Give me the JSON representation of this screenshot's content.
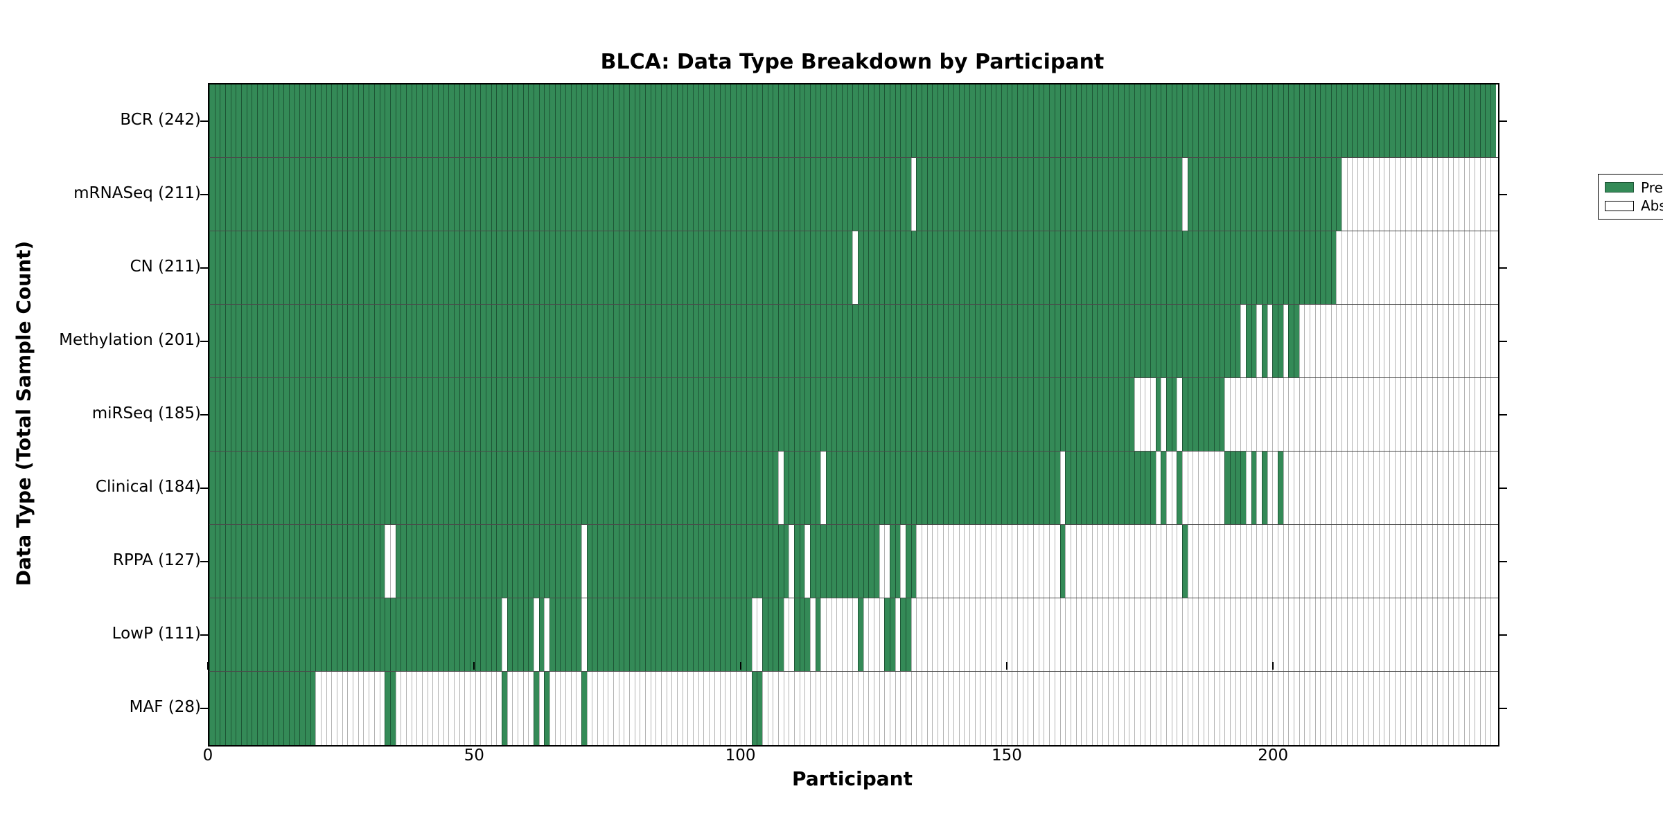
{
  "title": "BLCA: Data Type Breakdown by Participant",
  "legend": {
    "present_label": "Present",
    "absent_label": "Absent"
  },
  "colors": {
    "present_fill": "#348a57",
    "present_edge": "#1d5535",
    "absent_fill": "#ffffff",
    "absent_edge": "#b3b3b3",
    "row_separator": "#4a4a4a",
    "spine": "#000000"
  },
  "chart_data": {
    "type": "heatmap",
    "title": "BLCA: Data Type Breakdown by Participant",
    "xlabel": "Participant",
    "ylabel": "Data Type (Total Sample Count)",
    "x_range": [
      0,
      242
    ],
    "n_participants": 242,
    "x_ticks": [
      0,
      50,
      100,
      150,
      200
    ],
    "x_tick_labels": [
      "0",
      "50",
      "100",
      "150",
      "200"
    ],
    "grid": false,
    "legend_position": "upper right",
    "legend_entries": [
      "Present",
      "Absent"
    ],
    "states": {
      "P": "present",
      "A": "absent"
    },
    "rows": [
      {
        "name": "BCR",
        "count": 242,
        "label": "BCR (242)",
        "segments": [
          [
            0,
            242,
            "P"
          ]
        ]
      },
      {
        "name": "mRNASeq",
        "count": 211,
        "label": "mRNASeq (211)",
        "segments": [
          [
            0,
            132,
            "P"
          ],
          [
            132,
            133,
            "A"
          ],
          [
            133,
            183,
            "P"
          ],
          [
            183,
            184,
            "A"
          ],
          [
            184,
            213,
            "P"
          ],
          [
            213,
            242,
            "A"
          ]
        ]
      },
      {
        "name": "CN",
        "count": 211,
        "label": "CN (211)",
        "segments": [
          [
            0,
            121,
            "P"
          ],
          [
            121,
            122,
            "A"
          ],
          [
            122,
            212,
            "P"
          ],
          [
            212,
            242,
            "A"
          ]
        ]
      },
      {
        "name": "Methylation",
        "count": 201,
        "label": "Methylation (201)",
        "segments": [
          [
            0,
            194,
            "P"
          ],
          [
            194,
            195,
            "A"
          ],
          [
            195,
            197,
            "P"
          ],
          [
            197,
            198,
            "A"
          ],
          [
            198,
            199,
            "P"
          ],
          [
            199,
            200,
            "A"
          ],
          [
            200,
            202,
            "P"
          ],
          [
            202,
            203,
            "A"
          ],
          [
            203,
            205,
            "P"
          ],
          [
            205,
            242,
            "A"
          ]
        ]
      },
      {
        "name": "miRSeq",
        "count": 185,
        "label": "miRSeq (185)",
        "segments": [
          [
            0,
            174,
            "P"
          ],
          [
            174,
            178,
            "A"
          ],
          [
            178,
            179,
            "P"
          ],
          [
            179,
            180,
            "A"
          ],
          [
            180,
            182,
            "P"
          ],
          [
            182,
            183,
            "A"
          ],
          [
            183,
            191,
            "P"
          ],
          [
            191,
            242,
            "A"
          ]
        ]
      },
      {
        "name": "Clinical",
        "count": 184,
        "label": "Clinical (184)",
        "segments": [
          [
            0,
            107,
            "P"
          ],
          [
            107,
            108,
            "A"
          ],
          [
            108,
            115,
            "P"
          ],
          [
            115,
            116,
            "A"
          ],
          [
            116,
            160,
            "P"
          ],
          [
            160,
            161,
            "A"
          ],
          [
            161,
            178,
            "P"
          ],
          [
            178,
            179,
            "A"
          ],
          [
            179,
            180,
            "P"
          ],
          [
            180,
            182,
            "A"
          ],
          [
            182,
            183,
            "P"
          ],
          [
            183,
            191,
            "A"
          ],
          [
            191,
            195,
            "P"
          ],
          [
            195,
            196,
            "A"
          ],
          [
            196,
            197,
            "P"
          ],
          [
            197,
            198,
            "A"
          ],
          [
            198,
            199,
            "P"
          ],
          [
            199,
            201,
            "A"
          ],
          [
            201,
            202,
            "P"
          ],
          [
            202,
            242,
            "A"
          ]
        ]
      },
      {
        "name": "RPPA",
        "count": 127,
        "label": "RPPA (127)",
        "segments": [
          [
            0,
            33,
            "P"
          ],
          [
            33,
            35,
            "A"
          ],
          [
            35,
            70,
            "P"
          ],
          [
            70,
            71,
            "A"
          ],
          [
            71,
            109,
            "P"
          ],
          [
            109,
            110,
            "A"
          ],
          [
            110,
            112,
            "P"
          ],
          [
            112,
            113,
            "A"
          ],
          [
            113,
            126,
            "P"
          ],
          [
            126,
            128,
            "A"
          ],
          [
            128,
            130,
            "P"
          ],
          [
            130,
            131,
            "A"
          ],
          [
            131,
            133,
            "P"
          ],
          [
            133,
            160,
            "A"
          ],
          [
            160,
            161,
            "P"
          ],
          [
            161,
            183,
            "A"
          ],
          [
            183,
            184,
            "P"
          ],
          [
            184,
            242,
            "A"
          ]
        ]
      },
      {
        "name": "LowP",
        "count": 111,
        "label": "LowP (111)",
        "segments": [
          [
            0,
            55,
            "P"
          ],
          [
            55,
            56,
            "A"
          ],
          [
            56,
            61,
            "P"
          ],
          [
            61,
            62,
            "A"
          ],
          [
            62,
            63,
            "P"
          ],
          [
            63,
            64,
            "A"
          ],
          [
            64,
            70,
            "P"
          ],
          [
            70,
            71,
            "A"
          ],
          [
            71,
            102,
            "P"
          ],
          [
            102,
            104,
            "A"
          ],
          [
            104,
            108,
            "P"
          ],
          [
            108,
            110,
            "A"
          ],
          [
            110,
            113,
            "P"
          ],
          [
            113,
            114,
            "A"
          ],
          [
            114,
            115,
            "P"
          ],
          [
            115,
            122,
            "A"
          ],
          [
            122,
            123,
            "P"
          ],
          [
            123,
            127,
            "A"
          ],
          [
            127,
            129,
            "P"
          ],
          [
            129,
            130,
            "A"
          ],
          [
            130,
            132,
            "P"
          ],
          [
            132,
            242,
            "A"
          ]
        ]
      },
      {
        "name": "MAF",
        "count": 28,
        "label": "MAF (28)",
        "segments": [
          [
            0,
            20,
            "P"
          ],
          [
            20,
            33,
            "A"
          ],
          [
            33,
            35,
            "P"
          ],
          [
            35,
            55,
            "A"
          ],
          [
            55,
            56,
            "P"
          ],
          [
            56,
            61,
            "A"
          ],
          [
            61,
            62,
            "P"
          ],
          [
            62,
            63,
            "A"
          ],
          [
            63,
            64,
            "P"
          ],
          [
            64,
            70,
            "A"
          ],
          [
            70,
            71,
            "P"
          ],
          [
            71,
            102,
            "A"
          ],
          [
            102,
            104,
            "P"
          ],
          [
            104,
            242,
            "A"
          ]
        ]
      }
    ]
  }
}
